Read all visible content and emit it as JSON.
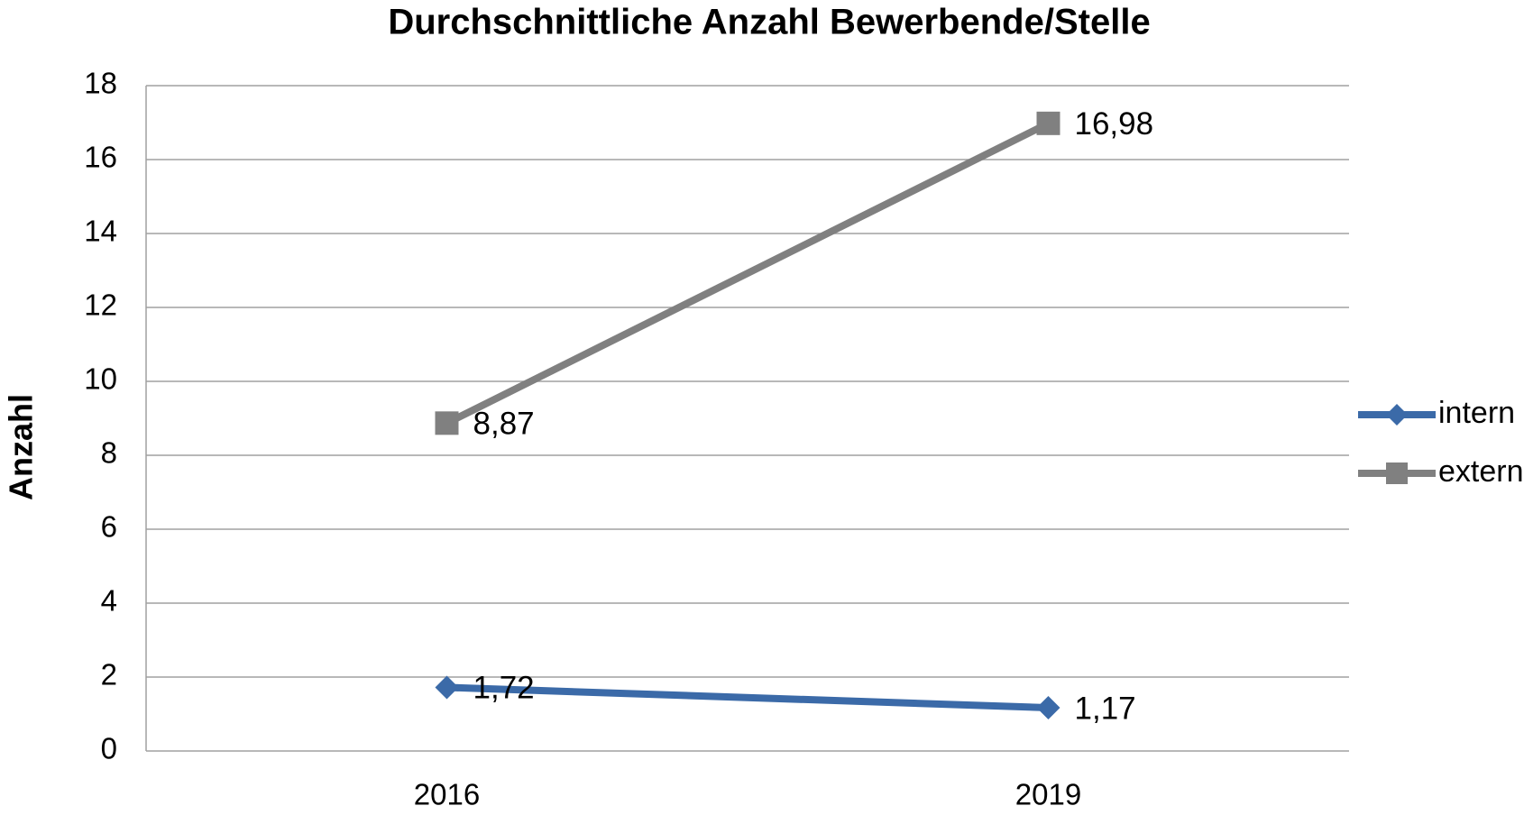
{
  "chart_data": {
    "type": "line",
    "title": "Durchschnittliche Anzahl Bewerbende/Stelle",
    "ylabel": "Anzahl",
    "categories": [
      "2016",
      "2019"
    ],
    "series": [
      {
        "name": "intern",
        "color": "#3b6aa8",
        "marker": "diamond",
        "values": [
          1.72,
          1.17
        ],
        "value_labels": [
          "1,72",
          "1,17"
        ]
      },
      {
        "name": "extern",
        "color": "#808080",
        "marker": "square",
        "values": [
          8.87,
          16.98
        ],
        "value_labels": [
          "8,87",
          "16,98"
        ]
      }
    ],
    "ylim": [
      0,
      18
    ],
    "yticks": [
      0,
      2,
      4,
      6,
      8,
      10,
      12,
      14,
      16,
      18
    ],
    "grid": true,
    "legend": "right"
  }
}
